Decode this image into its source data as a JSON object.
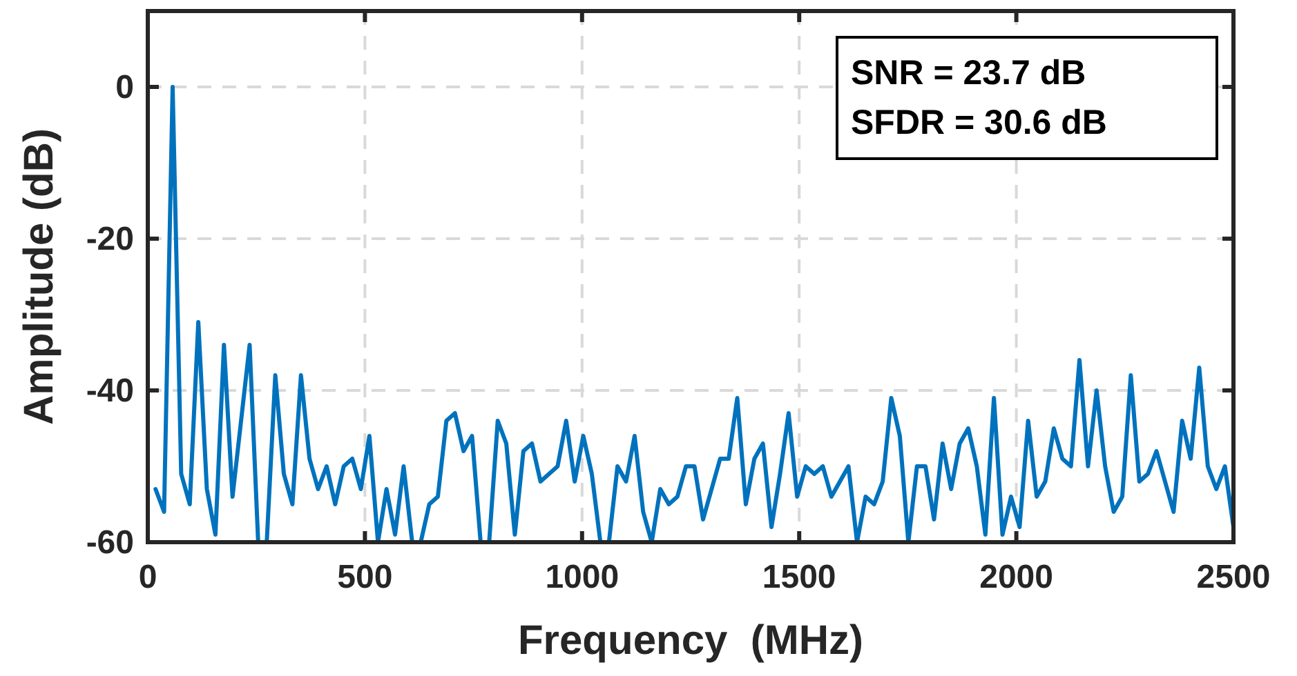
{
  "chart_data": {
    "type": "line",
    "xlabel": "Frequency  (MHz)",
    "ylabel": "Amplitude (dB)",
    "annotations": [
      "SNR = 23.7 dB",
      "SFDR = 30.6 dB"
    ],
    "x": [
      17.8,
      37.5,
      57.2,
      76.9,
      96.6,
      116.3,
      136.0,
      155.7,
      175.4,
      195.1,
      214.8,
      234.5,
      254.2,
      273.9,
      293.6,
      313.3,
      333.0,
      352.7,
      372.4,
      392.1,
      411.8,
      431.5,
      451.2,
      470.9,
      490.6,
      510.3,
      530.0,
      549.7,
      569.4,
      589.1,
      608.8,
      628.5,
      648.2,
      667.9,
      687.6,
      707.3,
      727.0,
      746.7,
      766.4,
      786.1,
      805.8,
      825.5,
      845.2,
      864.9,
      884.6,
      904.3,
      924.0,
      943.7,
      963.4,
      983.1,
      1002.8,
      1022.5,
      1042.2,
      1061.9,
      1081.6,
      1101.3,
      1121.0,
      1140.7,
      1160.4,
      1180.1,
      1199.8,
      1219.5,
      1239.2,
      1258.9,
      1278.6,
      1298.3,
      1318.0,
      1337.7,
      1357.4,
      1377.1,
      1396.8,
      1416.5,
      1436.2,
      1455.9,
      1475.6,
      1495.3,
      1515.0,
      1534.7,
      1554.4,
      1574.1,
      1593.8,
      1613.5,
      1633.2,
      1652.9,
      1672.6,
      1692.3,
      1712.0,
      1731.7,
      1751.4,
      1771.1,
      1790.8,
      1810.5,
      1830.2,
      1849.9,
      1869.6,
      1889.3,
      1909.0,
      1928.7,
      1948.4,
      1968.1,
      1987.8,
      2007.5,
      2027.2,
      2046.9,
      2066.6,
      2086.3,
      2106.0,
      2125.7,
      2145.4,
      2165.1,
      2184.8,
      2204.5,
      2224.2,
      2243.9,
      2263.6,
      2283.3,
      2303.0,
      2322.7,
      2342.4,
      2362.1,
      2381.8,
      2401.5,
      2421.2,
      2440.9,
      2460.6,
      2480.3,
      2500.0
    ],
    "series": [
      {
        "color": "#0072bd",
        "values": [
          -53,
          -56,
          0,
          -51,
          -55,
          -31,
          -53,
          -59,
          -34,
          -54,
          -44,
          -34,
          -60,
          -60,
          -38,
          -51,
          -55,
          -38,
          -49,
          -53,
          -50,
          -55,
          -50,
          -49,
          -53,
          -46,
          -60,
          -53,
          -59,
          -50,
          -60,
          -60,
          -55,
          -54,
          -44,
          -43,
          -48,
          -46,
          -60,
          -60,
          -44,
          -47,
          -59,
          -48,
          -47,
          -52,
          -51,
          -50,
          -44,
          -52,
          -46,
          -51,
          -60,
          -60,
          -50,
          -52,
          -46,
          -56,
          -60,
          -53,
          -55,
          -54,
          -50,
          -50,
          -57,
          -53,
          -49,
          -49,
          -41,
          -55,
          -49,
          -47,
          -58,
          -51,
          -43,
          -54,
          -50,
          -51,
          -50,
          -54,
          -52,
          -50,
          -60,
          -54,
          -55,
          -52,
          -41,
          -46,
          -60,
          -50,
          -50,
          -57,
          -47,
          -53,
          -47,
          -45,
          -50,
          -59,
          -41,
          -59,
          -54,
          -58,
          -44,
          -54,
          -52,
          -45,
          -49,
          -50,
          -36,
          -50,
          -40,
          -50,
          -56,
          -54,
          -38,
          -52,
          -51,
          -48,
          -52,
          -56,
          -44,
          -49,
          -37,
          -50,
          -53,
          -50,
          -58
        ]
      }
    ],
    "xlim": [
      0,
      2500
    ],
    "xticks": [
      0,
      500,
      1000,
      1500,
      2000,
      2500
    ],
    "ylim": [
      -60,
      10
    ],
    "yticks": [
      -60,
      -40,
      -20,
      0
    ],
    "grid": true,
    "line_style": "solid",
    "marker": "none"
  }
}
